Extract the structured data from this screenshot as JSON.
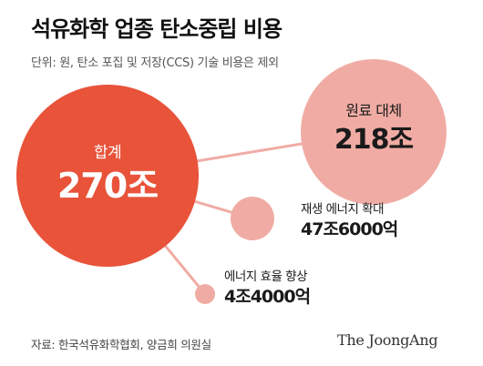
{
  "header": {
    "title": "석유화학 업종 탄소중립 비용",
    "subtitle": "단위: 원, 탄소 포집 및 저장(CCS) 기술 비용은 제외"
  },
  "chart_data": {
    "type": "bubble",
    "unit": "원",
    "items": [
      {
        "label": "합계",
        "value_text": "270조",
        "value_jo": 270,
        "role": "total"
      },
      {
        "label": "원료 대체",
        "value_text": "218조",
        "value_jo": 218,
        "role": "part"
      },
      {
        "label": "재생 에너지 확대",
        "value_text": "47조6000억",
        "value_jo": 47.6,
        "role": "part"
      },
      {
        "label": "에너지 효율 향상",
        "value_text": "4조4000억",
        "value_jo": 4.4,
        "role": "part"
      }
    ]
  },
  "footer": {
    "source": "자료: 한국석유화학협회, 양금희 의원실",
    "brand": "The JoongAng"
  },
  "colors": {
    "total_bubble": "#e8533a",
    "part_bubble": "#f0aca4",
    "connector": "#f0aca4",
    "text_dark": "#1a1a1a",
    "text_light": "#ffffff"
  }
}
